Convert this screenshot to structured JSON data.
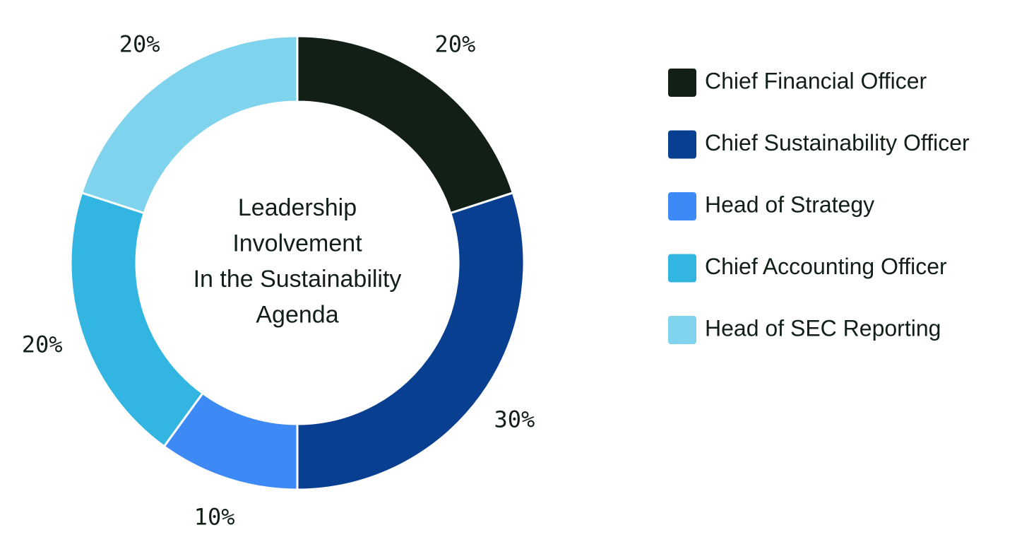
{
  "chart_data": {
    "type": "donut",
    "center_text": [
      "Leadership",
      "Involvement",
      "In the Sustainability",
      "Agenda"
    ],
    "categories": [
      "Chief Financial Officer",
      "Chief Sustainability Officer",
      "Head of Strategy",
      "Chief Accounting Officer",
      "Head of SEC Reporting"
    ],
    "values": [
      20,
      30,
      10,
      20,
      20
    ],
    "value_labels": [
      "20%",
      "30%",
      "10%",
      "20%",
      "20%"
    ],
    "colors": [
      "#121f17",
      "#093f91",
      "#3d8af7",
      "#32b5e0",
      "#7fd3ec"
    ],
    "legend": "right"
  }
}
